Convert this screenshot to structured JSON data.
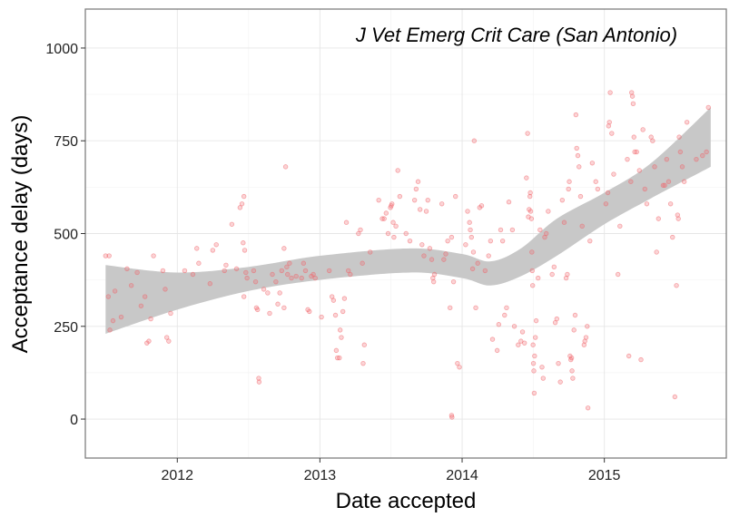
{
  "chart_data": {
    "type": "scatter",
    "title": "J Vet Emerg Crit Care (San Antonio)",
    "xlabel": "Date accepted",
    "ylabel": "Acceptance delay (days)",
    "x_range": [
      "2011-05-10",
      "2015-11-10"
    ],
    "ylim": [
      -105,
      1105
    ],
    "x_ticks": [
      {
        "date": "2012-01-01",
        "label": "2012"
      },
      {
        "date": "2013-01-01",
        "label": "2013"
      },
      {
        "date": "2014-01-01",
        "label": "2014"
      },
      {
        "date": "2015-01-01",
        "label": "2015"
      }
    ],
    "y_ticks": [
      0,
      250,
      500,
      750,
      1000
    ],
    "grid": true,
    "point_color": "#f0646a",
    "band_color": "#c8c8c8",
    "points": [
      [
        "2011-07-01",
        440
      ],
      [
        "2011-07-10",
        440
      ],
      [
        "2011-07-08",
        330
      ],
      [
        "2011-07-12",
        240
      ],
      [
        "2011-07-20",
        265
      ],
      [
        "2011-07-25",
        345
      ],
      [
        "2011-08-10",
        275
      ],
      [
        "2011-08-25",
        405
      ],
      [
        "2011-09-05",
        360
      ],
      [
        "2011-09-20",
        395
      ],
      [
        "2011-09-30",
        305
      ],
      [
        "2011-10-10",
        330
      ],
      [
        "2011-10-15",
        205
      ],
      [
        "2011-10-20",
        210
      ],
      [
        "2011-10-25",
        270
      ],
      [
        "2011-11-01",
        440
      ],
      [
        "2011-11-25",
        400
      ],
      [
        "2011-12-05",
        220
      ],
      [
        "2011-12-10",
        210
      ],
      [
        "2011-12-15",
        285
      ],
      [
        "2011-12-01",
        350
      ],
      [
        "2012-01-20",
        400
      ],
      [
        "2012-02-10",
        390
      ],
      [
        "2012-02-20",
        460
      ],
      [
        "2012-02-25",
        420
      ],
      [
        "2012-03-25",
        365
      ],
      [
        "2012-04-01",
        455
      ],
      [
        "2012-04-10",
        470
      ],
      [
        "2012-05-01",
        400
      ],
      [
        "2012-05-05",
        415
      ],
      [
        "2012-05-20",
        525
      ],
      [
        "2012-06-01",
        405
      ],
      [
        "2012-06-10",
        570
      ],
      [
        "2012-06-15",
        580
      ],
      [
        "2012-06-20",
        600
      ],
      [
        "2012-06-18",
        475
      ],
      [
        "2012-06-22",
        455
      ],
      [
        "2012-06-25",
        395
      ],
      [
        "2012-06-28",
        380
      ],
      [
        "2012-06-20",
        330
      ],
      [
        "2012-07-15",
        400
      ],
      [
        "2012-07-20",
        370
      ],
      [
        "2012-07-22",
        300
      ],
      [
        "2012-07-25",
        295
      ],
      [
        "2012-07-28",
        110
      ],
      [
        "2012-07-29",
        100
      ],
      [
        "2012-08-10",
        350
      ],
      [
        "2012-08-20",
        340
      ],
      [
        "2012-08-25",
        285
      ],
      [
        "2012-09-01",
        390
      ],
      [
        "2012-09-10",
        370
      ],
      [
        "2012-09-15",
        310
      ],
      [
        "2012-09-20",
        340
      ],
      [
        "2012-09-25",
        400
      ],
      [
        "2012-10-01",
        300
      ],
      [
        "2012-10-01",
        460
      ],
      [
        "2012-10-05",
        680
      ],
      [
        "2012-10-08",
        410
      ],
      [
        "2012-10-10",
        390
      ],
      [
        "2012-10-15",
        420
      ],
      [
        "2012-10-20",
        380
      ],
      [
        "2012-11-01",
        385
      ],
      [
        "2012-11-15",
        380
      ],
      [
        "2012-11-20",
        420
      ],
      [
        "2012-11-25",
        400
      ],
      [
        "2012-12-01",
        295
      ],
      [
        "2012-12-05",
        290
      ],
      [
        "2012-12-10",
        385
      ],
      [
        "2012-12-15",
        390
      ],
      [
        "2012-12-20",
        380
      ],
      [
        "2013-01-05",
        275
      ],
      [
        "2013-01-25",
        400
      ],
      [
        "2013-02-01",
        330
      ],
      [
        "2013-02-05",
        320
      ],
      [
        "2013-02-10",
        280
      ],
      [
        "2013-02-12",
        185
      ],
      [
        "2013-02-15",
        165
      ],
      [
        "2013-02-20",
        165
      ],
      [
        "2013-02-22",
        240
      ],
      [
        "2013-02-25",
        220
      ],
      [
        "2013-03-01",
        290
      ],
      [
        "2013-03-05",
        325
      ],
      [
        "2013-03-10",
        530
      ],
      [
        "2013-03-15",
        400
      ],
      [
        "2013-03-20",
        390
      ],
      [
        "2013-04-10",
        500
      ],
      [
        "2013-04-15",
        510
      ],
      [
        "2013-04-20",
        420
      ],
      [
        "2013-04-22",
        150
      ],
      [
        "2013-04-25",
        200
      ],
      [
        "2013-05-10",
        450
      ],
      [
        "2013-06-01",
        590
      ],
      [
        "2013-06-10",
        540
      ],
      [
        "2013-06-15",
        540
      ],
      [
        "2013-06-20",
        555
      ],
      [
        "2013-06-25",
        500
      ],
      [
        "2013-07-01",
        570
      ],
      [
        "2013-07-03",
        575
      ],
      [
        "2013-07-05",
        580
      ],
      [
        "2013-07-08",
        530
      ],
      [
        "2013-07-10",
        490
      ],
      [
        "2013-07-15",
        520
      ],
      [
        "2013-07-20",
        670
      ],
      [
        "2013-07-25",
        600
      ],
      [
        "2013-08-10",
        500
      ],
      [
        "2013-08-20",
        480
      ],
      [
        "2013-09-01",
        590
      ],
      [
        "2013-09-05",
        620
      ],
      [
        "2013-09-10",
        640
      ],
      [
        "2013-09-15",
        565
      ],
      [
        "2013-09-20",
        470
      ],
      [
        "2013-09-25",
        440
      ],
      [
        "2013-10-01",
        560
      ],
      [
        "2013-10-05",
        590
      ],
      [
        "2013-10-10",
        460
      ],
      [
        "2013-10-15",
        430
      ],
      [
        "2013-10-18",
        380
      ],
      [
        "2013-10-20",
        370
      ],
      [
        "2013-10-22",
        390
      ],
      [
        "2013-11-10",
        580
      ],
      [
        "2013-11-15",
        430
      ],
      [
        "2013-11-20",
        445
      ],
      [
        "2013-11-25",
        480
      ],
      [
        "2013-12-01",
        300
      ],
      [
        "2013-12-05",
        490
      ],
      [
        "2013-12-05",
        10
      ],
      [
        "2013-12-06",
        5
      ],
      [
        "2013-12-10",
        370
      ],
      [
        "2013-12-15",
        600
      ],
      [
        "2013-12-20",
        150
      ],
      [
        "2013-12-25",
        140
      ],
      [
        "2014-01-10",
        470
      ],
      [
        "2014-01-15",
        560
      ],
      [
        "2014-01-20",
        530
      ],
      [
        "2014-01-22",
        510
      ],
      [
        "2014-01-25",
        490
      ],
      [
        "2014-01-28",
        405
      ],
      [
        "2014-01-30",
        450
      ],
      [
        "2014-02-01",
        750
      ],
      [
        "2014-02-05",
        300
      ],
      [
        "2014-02-10",
        420
      ],
      [
        "2014-02-15",
        570
      ],
      [
        "2014-02-20",
        575
      ],
      [
        "2014-03-01",
        400
      ],
      [
        "2014-03-10",
        440
      ],
      [
        "2014-03-15",
        480
      ],
      [
        "2014-03-20",
        215
      ],
      [
        "2014-04-01",
        185
      ],
      [
        "2014-04-05",
        255
      ],
      [
        "2014-04-10",
        510
      ],
      [
        "2014-04-15",
        480
      ],
      [
        "2014-04-20",
        280
      ],
      [
        "2014-04-25",
        300
      ],
      [
        "2014-05-01",
        585
      ],
      [
        "2014-05-10",
        510
      ],
      [
        "2014-05-15",
        250
      ],
      [
        "2014-05-25",
        200
      ],
      [
        "2014-06-01",
        210
      ],
      [
        "2014-06-05",
        235
      ],
      [
        "2014-06-10",
        205
      ],
      [
        "2014-06-15",
        650
      ],
      [
        "2014-06-18",
        770
      ],
      [
        "2014-06-20",
        545
      ],
      [
        "2014-06-22",
        565
      ],
      [
        "2014-06-24",
        600
      ],
      [
        "2014-06-25",
        610
      ],
      [
        "2014-06-26",
        560
      ],
      [
        "2014-06-28",
        540
      ],
      [
        "2014-06-29",
        450
      ],
      [
        "2014-06-30",
        400
      ],
      [
        "2014-07-01",
        360
      ],
      [
        "2014-07-02",
        200
      ],
      [
        "2014-07-03",
        150
      ],
      [
        "2014-07-04",
        130
      ],
      [
        "2014-07-05",
        70
      ],
      [
        "2014-07-06",
        170
      ],
      [
        "2014-07-08",
        220
      ],
      [
        "2014-07-10",
        265
      ],
      [
        "2014-07-15",
        380
      ],
      [
        "2014-07-20",
        510
      ],
      [
        "2014-07-25",
        140
      ],
      [
        "2014-07-28",
        110
      ],
      [
        "2014-08-01",
        490
      ],
      [
        "2014-08-05",
        500
      ],
      [
        "2014-08-10",
        560
      ],
      [
        "2014-08-20",
        390
      ],
      [
        "2014-08-25",
        410
      ],
      [
        "2014-08-28",
        260
      ],
      [
        "2014-09-01",
        270
      ],
      [
        "2014-09-05",
        150
      ],
      [
        "2014-09-10",
        100
      ],
      [
        "2014-09-15",
        590
      ],
      [
        "2014-09-20",
        530
      ],
      [
        "2014-09-25",
        380
      ],
      [
        "2014-09-28",
        390
      ],
      [
        "2014-10-01",
        620
      ],
      [
        "2014-10-03",
        640
      ],
      [
        "2014-10-05",
        170
      ],
      [
        "2014-10-07",
        160
      ],
      [
        "2014-10-09",
        165
      ],
      [
        "2014-10-10",
        130
      ],
      [
        "2014-10-12",
        110
      ],
      [
        "2014-10-15",
        240
      ],
      [
        "2014-10-18",
        280
      ],
      [
        "2014-10-20",
        820
      ],
      [
        "2014-10-22",
        730
      ],
      [
        "2014-10-25",
        710
      ],
      [
        "2014-10-28",
        680
      ],
      [
        "2014-11-01",
        600
      ],
      [
        "2014-11-05",
        520
      ],
      [
        "2014-11-10",
        200
      ],
      [
        "2014-11-12",
        210
      ],
      [
        "2014-11-15",
        220
      ],
      [
        "2014-11-18",
        250
      ],
      [
        "2014-11-20",
        30
      ],
      [
        "2014-11-25",
        480
      ],
      [
        "2014-12-01",
        690
      ],
      [
        "2014-12-10",
        640
      ],
      [
        "2014-12-15",
        620
      ],
      [
        "2015-01-05",
        580
      ],
      [
        "2015-01-10",
        610
      ],
      [
        "2015-01-12",
        790
      ],
      [
        "2015-01-14",
        800
      ],
      [
        "2015-01-16",
        880
      ],
      [
        "2015-01-20",
        770
      ],
      [
        "2015-01-25",
        660
      ],
      [
        "2015-02-05",
        390
      ],
      [
        "2015-02-10",
        520
      ],
      [
        "2015-03-01",
        700
      ],
      [
        "2015-03-05",
        170
      ],
      [
        "2015-03-10",
        640
      ],
      [
        "2015-03-12",
        880
      ],
      [
        "2015-03-14",
        870
      ],
      [
        "2015-03-16",
        850
      ],
      [
        "2015-03-18",
        760
      ],
      [
        "2015-03-20",
        720
      ],
      [
        "2015-03-25",
        720
      ],
      [
        "2015-04-01",
        670
      ],
      [
        "2015-04-05",
        160
      ],
      [
        "2015-04-10",
        780
      ],
      [
        "2015-04-15",
        620
      ],
      [
        "2015-04-20",
        580
      ],
      [
        "2015-05-01",
        760
      ],
      [
        "2015-05-05",
        750
      ],
      [
        "2015-05-10",
        680
      ],
      [
        "2015-05-15",
        450
      ],
      [
        "2015-05-20",
        540
      ],
      [
        "2015-06-01",
        630
      ],
      [
        "2015-06-05",
        630
      ],
      [
        "2015-06-10",
        700
      ],
      [
        "2015-06-15",
        640
      ],
      [
        "2015-06-20",
        580
      ],
      [
        "2015-06-25",
        490
      ],
      [
        "2015-07-01",
        60
      ],
      [
        "2015-07-05",
        360
      ],
      [
        "2015-07-08",
        550
      ],
      [
        "2015-07-10",
        540
      ],
      [
        "2015-07-12",
        760
      ],
      [
        "2015-07-15",
        720
      ],
      [
        "2015-07-20",
        680
      ],
      [
        "2015-07-25",
        640
      ],
      [
        "2015-08-01",
        800
      ],
      [
        "2015-08-25",
        700
      ],
      [
        "2015-09-10",
        710
      ],
      [
        "2015-09-20",
        720
      ],
      [
        "2015-09-25",
        840
      ]
    ],
    "smooth": [
      {
        "x": "2011-07-01",
        "lower": 230,
        "upper": 415
      },
      {
        "x": "2012-01-01",
        "lower": 295,
        "upper": 395
      },
      {
        "x": "2012-07-01",
        "lower": 345,
        "upper": 410
      },
      {
        "x": "2013-01-01",
        "lower": 375,
        "upper": 440
      },
      {
        "x": "2013-08-20",
        "lower": 395,
        "upper": 460
      },
      {
        "x": "2014-01-01",
        "lower": 380,
        "upper": 445
      },
      {
        "x": "2014-03-15",
        "lower": 360,
        "upper": 425
      },
      {
        "x": "2014-06-01",
        "lower": 385,
        "upper": 460
      },
      {
        "x": "2014-09-01",
        "lower": 440,
        "upper": 540
      },
      {
        "x": "2015-01-01",
        "lower": 525,
        "upper": 610
      },
      {
        "x": "2015-05-01",
        "lower": 595,
        "upper": 690
      },
      {
        "x": "2015-10-01",
        "lower": 680,
        "upper": 840
      }
    ]
  }
}
